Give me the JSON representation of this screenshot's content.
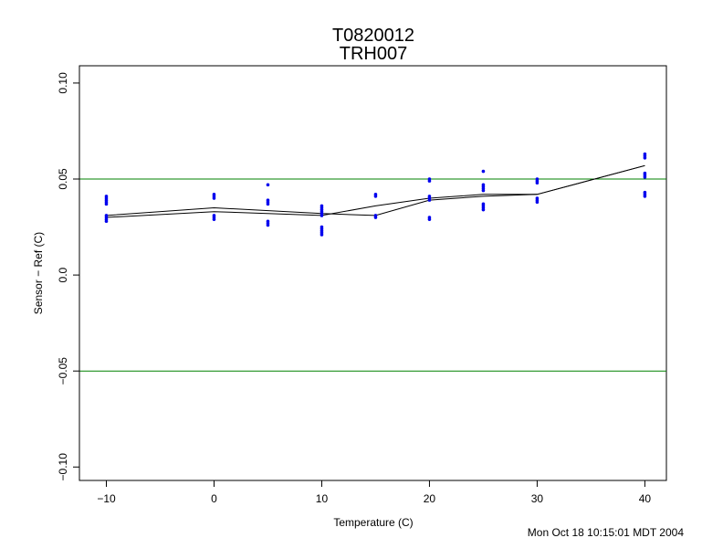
{
  "chart_data": {
    "type": "scatter",
    "title": "T0820012",
    "subtitle": "TRH007",
    "xlabel": "Temperature (C)",
    "ylabel": "Sensor − Ref (C)",
    "xlim": [
      -12.5,
      42
    ],
    "ylim": [
      -0.107,
      0.109
    ],
    "xticks": [
      -10,
      0,
      10,
      20,
      30,
      40
    ],
    "xtick_labels": [
      "−10",
      "0",
      "10",
      "20",
      "30",
      "40"
    ],
    "yticks": [
      -0.1,
      -0.05,
      0.0,
      0.05,
      0.1
    ],
    "ytick_labels": [
      "−0.10",
      "−0.05",
      "0.0",
      "0.05",
      "0.10"
    ],
    "grid": false,
    "point_color": "#0000ee",
    "points": [
      {
        "x": -10,
        "y": 0.041
      },
      {
        "x": -10,
        "y": 0.04
      },
      {
        "x": -10,
        "y": 0.039
      },
      {
        "x": -10,
        "y": 0.038
      },
      {
        "x": -10,
        "y": 0.037
      },
      {
        "x": -10,
        "y": 0.031
      },
      {
        "x": -10,
        "y": 0.03
      },
      {
        "x": -10,
        "y": 0.029
      },
      {
        "x": -10,
        "y": 0.028
      },
      {
        "x": 0,
        "y": 0.042
      },
      {
        "x": 0,
        "y": 0.041
      },
      {
        "x": 0,
        "y": 0.04
      },
      {
        "x": 0,
        "y": 0.031
      },
      {
        "x": 0,
        "y": 0.03
      },
      {
        "x": 0,
        "y": 0.029
      },
      {
        "x": 5,
        "y": 0.047
      },
      {
        "x": 5,
        "y": 0.039
      },
      {
        "x": 5,
        "y": 0.038
      },
      {
        "x": 5,
        "y": 0.037
      },
      {
        "x": 5,
        "y": 0.028
      },
      {
        "x": 5,
        "y": 0.027
      },
      {
        "x": 5,
        "y": 0.026
      },
      {
        "x": 10,
        "y": 0.036
      },
      {
        "x": 10,
        "y": 0.035
      },
      {
        "x": 10,
        "y": 0.034
      },
      {
        "x": 10,
        "y": 0.033
      },
      {
        "x": 10,
        "y": 0.032
      },
      {
        "x": 10,
        "y": 0.031
      },
      {
        "x": 10,
        "y": 0.025
      },
      {
        "x": 10,
        "y": 0.024
      },
      {
        "x": 10,
        "y": 0.023
      },
      {
        "x": 10,
        "y": 0.022
      },
      {
        "x": 10,
        "y": 0.021
      },
      {
        "x": 15,
        "y": 0.042
      },
      {
        "x": 15,
        "y": 0.041
      },
      {
        "x": 15,
        "y": 0.031
      },
      {
        "x": 15,
        "y": 0.03
      },
      {
        "x": 20,
        "y": 0.05
      },
      {
        "x": 20,
        "y": 0.049
      },
      {
        "x": 20,
        "y": 0.041
      },
      {
        "x": 20,
        "y": 0.04
      },
      {
        "x": 20,
        "y": 0.039
      },
      {
        "x": 20,
        "y": 0.03
      },
      {
        "x": 20,
        "y": 0.029
      },
      {
        "x": 25,
        "y": 0.054
      },
      {
        "x": 25,
        "y": 0.047
      },
      {
        "x": 25,
        "y": 0.046
      },
      {
        "x": 25,
        "y": 0.045
      },
      {
        "x": 25,
        "y": 0.044
      },
      {
        "x": 25,
        "y": 0.037
      },
      {
        "x": 25,
        "y": 0.036
      },
      {
        "x": 25,
        "y": 0.035
      },
      {
        "x": 25,
        "y": 0.034
      },
      {
        "x": 30,
        "y": 0.05
      },
      {
        "x": 30,
        "y": 0.049
      },
      {
        "x": 30,
        "y": 0.048
      },
      {
        "x": 30,
        "y": 0.04
      },
      {
        "x": 30,
        "y": 0.039
      },
      {
        "x": 30,
        "y": 0.038
      },
      {
        "x": 40,
        "y": 0.063
      },
      {
        "x": 40,
        "y": 0.062
      },
      {
        "x": 40,
        "y": 0.061
      },
      {
        "x": 40,
        "y": 0.053
      },
      {
        "x": 40,
        "y": 0.052
      },
      {
        "x": 40,
        "y": 0.051
      },
      {
        "x": 40,
        "y": 0.043
      },
      {
        "x": 40,
        "y": 0.042
      },
      {
        "x": 40,
        "y": 0.041
      }
    ],
    "lines": [
      {
        "color": "#000000",
        "x": [
          -10,
          0,
          10,
          15,
          20,
          25,
          30,
          40
        ],
        "y": [
          0.031,
          0.035,
          0.032,
          0.031,
          0.039,
          0.041,
          0.042,
          0.057
        ]
      },
      {
        "color": "#000000",
        "x": [
          -10,
          0,
          10,
          15,
          20,
          25,
          30,
          40
        ],
        "y": [
          0.03,
          0.033,
          0.031,
          0.036,
          0.04,
          0.042,
          0.042,
          0.057
        ]
      }
    ],
    "hlines": [
      {
        "y": 0.05,
        "color": "#008000"
      },
      {
        "y": -0.05,
        "color": "#008000"
      }
    ]
  },
  "footer": {
    "timestamp": "Mon Oct 18 10:15:01 MDT 2004"
  }
}
